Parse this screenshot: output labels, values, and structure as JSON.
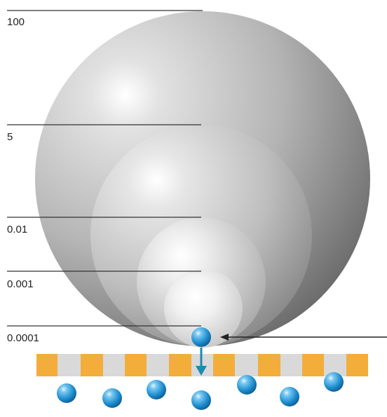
{
  "scale_labels": [
    "100",
    "5",
    "0.01",
    "0.001",
    "0.0001"
  ],
  "colors": {
    "sphere_light": "#ffffff",
    "sphere_mid": "#b4b4b4",
    "sphere_dark": "#6a6a6a",
    "membrane_block": "#f2ad3a",
    "membrane_gap": "#d9d9d9",
    "particle": "#1f8fd0",
    "particle_highlight": "#bfe9ff",
    "arrow": "#1a8bb3",
    "line": "#333333"
  },
  "icons": [
    "sphere",
    "particle",
    "arrow-down-icon",
    "pointer-arrow-icon"
  ]
}
